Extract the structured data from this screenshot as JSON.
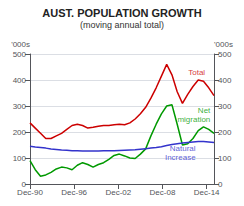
{
  "chart_data": {
    "type": "line",
    "title": "AUST. POPULATION GROWTH",
    "subtitle": "(moving annual total)",
    "y_label": "'000s",
    "y2_label": "'000s",
    "x": [
      0,
      0.7142857142857143,
      1.4285714285714286,
      2.142857142857143,
      2.857142857142857,
      3.5714285714285716,
      4.285714285714286,
      5,
      5.714285714285714,
      6.428571428571429,
      7.142857142857143,
      7.857142857142857,
      8.571428571428571,
      9.285714285714286,
      10,
      10.714285714285714,
      11.428571428571429,
      12.142857142857142,
      12.857142857142858,
      13.571428571428571,
      14.285714285714286,
      15,
      15.714285714285714,
      16.428571428571427,
      17.142857142857142,
      17.857142857142858,
      18.571428571428573,
      19.285714285714285,
      20,
      20.714285714285715,
      21.428571428571427,
      22.142857142857142,
      22.857142857142858,
      23.571428571428573,
      24.285714285714285,
      25
    ],
    "xlim": [
      0,
      25
    ],
    "xticks": [
      {
        "value": 0,
        "label": "Dec-90"
      },
      {
        "value": 6,
        "label": "Dec-96"
      },
      {
        "value": 12,
        "label": "Dec-02"
      },
      {
        "value": 18,
        "label": "Dec-08"
      },
      {
        "value": 24,
        "label": "Dec-14"
      }
    ],
    "ylim": [
      0,
      500
    ],
    "yticks": [
      0,
      100,
      200,
      300,
      400,
      500
    ],
    "y2lim": [
      0,
      500
    ],
    "y2ticks": [
      0,
      100,
      200,
      300,
      400,
      500
    ],
    "grid": true,
    "series": [
      {
        "name": "Total",
        "color": "#cc0000",
        "values": [
          235,
          215,
          195,
          175,
          175,
          185,
          195,
          210,
          225,
          230,
          225,
          215,
          218,
          222,
          225,
          225,
          228,
          230,
          228,
          235,
          250,
          270,
          295,
          330,
          370,
          415,
          460,
          420,
          355,
          310,
          345,
          375,
          400,
          395,
          370,
          340
        ]
      },
      {
        "name": "Net\nmigration",
        "color": "#009900",
        "values": [
          90,
          55,
          30,
          35,
          45,
          58,
          65,
          62,
          55,
          72,
          82,
          75,
          65,
          75,
          82,
          95,
          110,
          115,
          108,
          100,
          98,
          115,
          135,
          185,
          230,
          270,
          300,
          305,
          230,
          150,
          155,
          175,
          205,
          220,
          210,
          195
        ]
      },
      {
        "name": "Natural\nIncrease",
        "color": "#3333cc",
        "values": [
          145,
          142,
          140,
          138,
          135,
          133,
          131,
          130,
          128,
          128,
          127,
          127,
          127,
          127,
          128,
          128,
          128,
          129,
          130,
          131,
          132,
          134,
          136,
          138,
          140,
          143,
          148,
          152,
          155,
          158,
          160,
          162,
          163,
          163,
          162,
          160
        ]
      }
    ],
    "annotations": [
      {
        "text": "Total",
        "x": 21.5,
        "y": 430,
        "color": "#cc0000"
      },
      {
        "text": "Net\nmigration",
        "x": 24.5,
        "y": 265,
        "color": "#009900"
      },
      {
        "text": "Natural\nIncrease",
        "x": 22.5,
        "y": 120,
        "color": "#3333cc"
      }
    ]
  }
}
